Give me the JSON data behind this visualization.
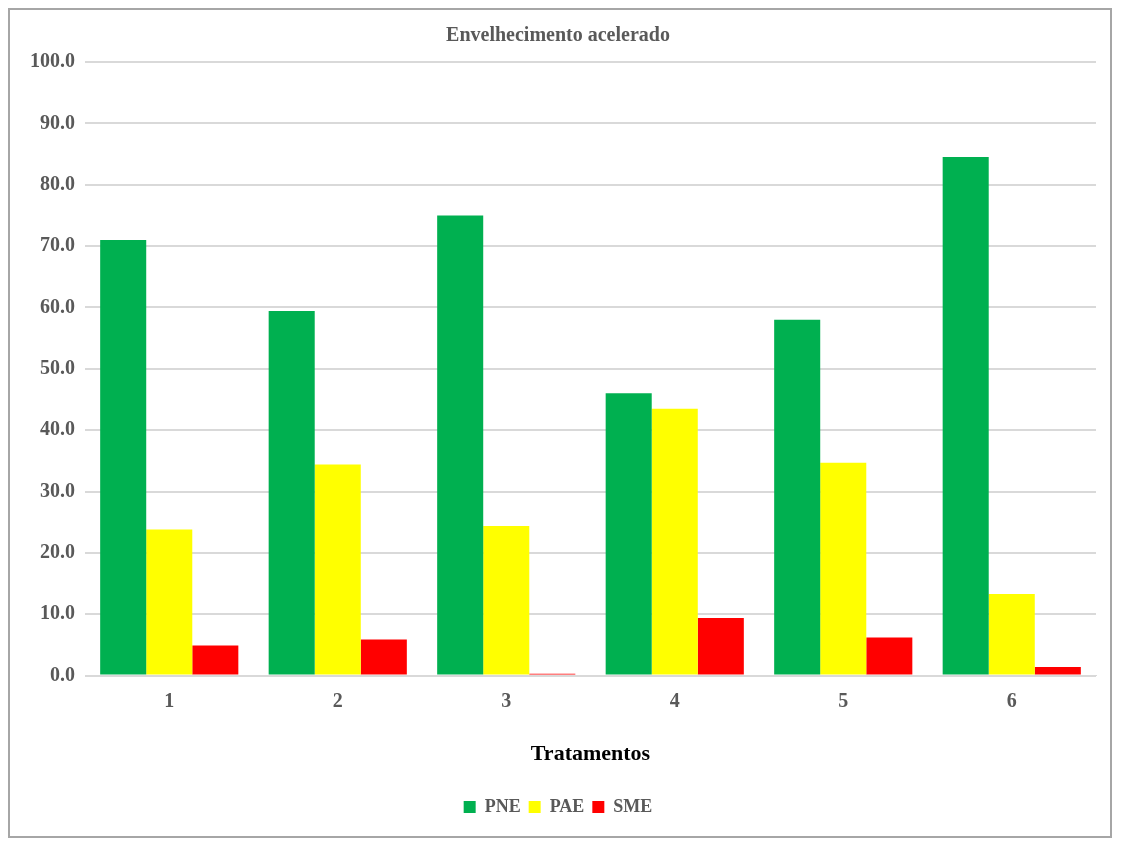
{
  "chart_data": {
    "type": "bar",
    "title": "Envelhecimento acelerado",
    "xlabel": "Tratamentos",
    "categories": [
      "1",
      "2",
      "3",
      "4",
      "5",
      "6"
    ],
    "series": [
      {
        "name": "PNE",
        "color": "#00b050",
        "values": [
          71.0,
          59.4,
          75.0,
          46.0,
          58.0,
          84.5
        ]
      },
      {
        "name": "PAE",
        "color": "#ffff00",
        "values": [
          23.8,
          34.4,
          24.4,
          43.5,
          34.7,
          13.3
        ]
      },
      {
        "name": "SME",
        "color": "#ff0000",
        "values": [
          4.9,
          5.9,
          0.3,
          9.4,
          6.2,
          1.4
        ]
      }
    ],
    "ylim": [
      0,
      100
    ],
    "yticks": [
      {
        "value": 0,
        "label": "0.0"
      },
      {
        "value": 10,
        "label": "10.0"
      },
      {
        "value": 20,
        "label": "20.0"
      },
      {
        "value": 30,
        "label": "30.0"
      },
      {
        "value": 40,
        "label": "40.0"
      },
      {
        "value": 50,
        "label": "50.0"
      },
      {
        "value": 60,
        "label": "60.0"
      },
      {
        "value": 70,
        "label": "70.0"
      },
      {
        "value": 80,
        "label": "80.0"
      },
      {
        "value": 90,
        "label": "90.0"
      },
      {
        "value": 100,
        "label": "100.0"
      }
    ],
    "grid": "y",
    "legend": "bottom"
  }
}
